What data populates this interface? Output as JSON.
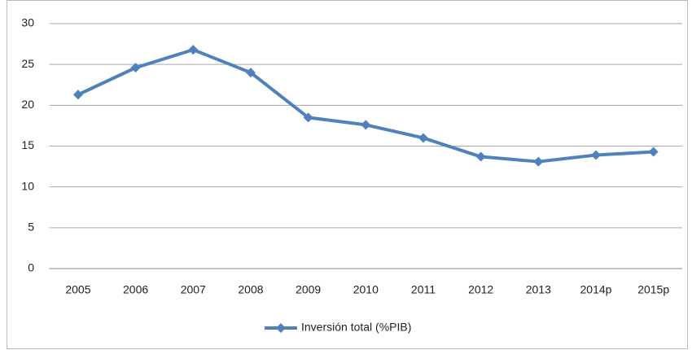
{
  "chart_data": {
    "type": "line",
    "categories": [
      "2005",
      "2006",
      "2007",
      "2008",
      "2009",
      "2010",
      "2011",
      "2012",
      "2013",
      "2014p",
      "2015p"
    ],
    "series": [
      {
        "name": "Inversión total (%PIB)",
        "color": "#4f81bd",
        "values": [
          21.3,
          24.6,
          26.8,
          24.0,
          18.5,
          17.6,
          16.0,
          13.7,
          13.1,
          13.9,
          14.3
        ]
      }
    ],
    "ylim": [
      0,
      30
    ],
    "yticks": [
      0,
      5,
      10,
      15,
      20,
      25,
      30
    ],
    "grid": true,
    "legend": "bottom"
  }
}
